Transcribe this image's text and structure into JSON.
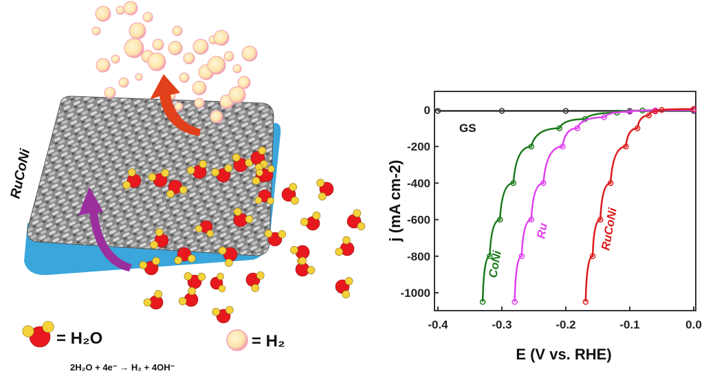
{
  "diagram": {
    "material_label": "RuCoNi",
    "legend_h2o": "= H₂O",
    "legend_h2": "= H₂",
    "reaction": "2H₂O + 4e⁻ → H₂ + 4OH⁻",
    "colors": {
      "oxygen": "#e8191e",
      "hydrogen": "#f5d23a",
      "bubble": "#fde3a8",
      "bubble_rim": "#f2a0b4",
      "substrate": "#3aa6dc",
      "arrow_up_red": "#e0401a",
      "arrow_purple": "#9b2f9e"
    }
  },
  "chart_data": {
    "type": "line",
    "xlabel": "E (V vs. RHE)",
    "ylabel": "j (mA cm-2)",
    "ylabel_parts": {
      "italic": "j",
      "main": " (mA cm",
      "sup": "-2",
      "close": ")"
    },
    "xlim": [
      -0.4,
      0.0
    ],
    "ylim": [
      -1100,
      100
    ],
    "xticks": [
      "-0.4",
      "-0.3",
      "-0.2",
      "-0.1",
      "0.0"
    ],
    "xtick_values": [
      -0.4,
      -0.3,
      -0.2,
      -0.1,
      0.0
    ],
    "yticks": [
      "0",
      "-200",
      "-400",
      "-600",
      "-800",
      "-1000"
    ],
    "ytick_values": [
      0,
      -200,
      -400,
      -600,
      -800,
      -1000
    ],
    "grid": false,
    "legend": "none (curves labelled inline)",
    "series": [
      {
        "name": "GS",
        "color": "#333333",
        "x": [
          -0.4,
          -0.3,
          -0.2,
          -0.1,
          0.0
        ],
        "y": [
          -5,
          -5,
          -5,
          -5,
          -5
        ]
      },
      {
        "name": "CoNi",
        "color": "#1a7a1a",
        "x": [
          -0.33,
          -0.319,
          -0.303,
          -0.282,
          -0.254,
          -0.21,
          -0.17,
          -0.12,
          -0.08,
          0.0
        ],
        "y": [
          -1050,
          -800,
          -600,
          -400,
          -200,
          -100,
          -50,
          -15,
          -3,
          0
        ]
      },
      {
        "name": "Ru",
        "color": "#e040f0",
        "x": [
          -0.28,
          -0.269,
          -0.254,
          -0.235,
          -0.205,
          -0.182,
          -0.14,
          -0.1,
          -0.06,
          0.0
        ],
        "y": [
          -1050,
          -800,
          -600,
          -400,
          -200,
          -100,
          -40,
          -10,
          -2,
          0
        ]
      },
      {
        "name": "RuCoNi",
        "color": "#dd1a1a",
        "x": [
          -0.169,
          -0.158,
          -0.146,
          -0.13,
          -0.106,
          -0.088,
          -0.07,
          -0.06,
          -0.05,
          0.0
        ],
        "y": [
          -1050,
          -800,
          -600,
          -400,
          -200,
          -100,
          -30,
          -8,
          0,
          5
        ]
      }
    ]
  }
}
